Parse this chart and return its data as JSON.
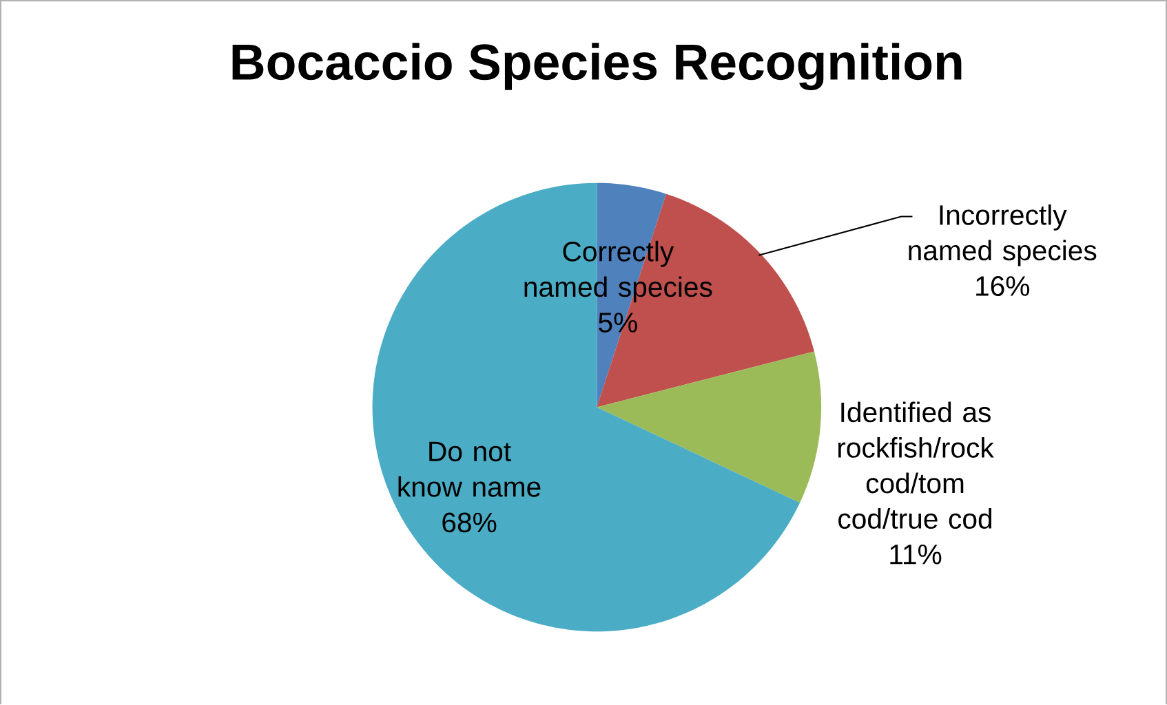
{
  "chart_data": {
    "type": "pie",
    "title": "Bocaccio Species Recognition",
    "categories": [
      "Correctly named species",
      "Incorrectly named species",
      "Identified as rockfish/rock cod/tom cod/true cod",
      "Do not know name"
    ],
    "values": [
      5,
      16,
      11,
      68
    ],
    "colors": [
      "#4f81bd",
      "#c0504d",
      "#9bbb59",
      "#4bacc6"
    ],
    "value_labels": [
      "5%",
      "16%",
      "11%",
      "68%"
    ]
  }
}
